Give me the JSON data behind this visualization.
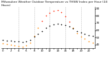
{
  "title": "Milwaukee Weather Outdoor Temperature vs THSW Index per Hour (24 Hours)",
  "title_fontsize": 3.2,
  "bg_color": "#ffffff",
  "plot_bg": "#ffffff",
  "hours": [
    0,
    1,
    2,
    3,
    4,
    5,
    6,
    7,
    8,
    9,
    10,
    11,
    12,
    13,
    14,
    15,
    16,
    17,
    18,
    19,
    20,
    21,
    22,
    23
  ],
  "temp": [
    47,
    46,
    46,
    45,
    45,
    44,
    45,
    47,
    51,
    55,
    59,
    63,
    66,
    68,
    69,
    68,
    67,
    65,
    62,
    59,
    57,
    55,
    53,
    52
  ],
  "thsw": [
    42,
    41,
    40,
    39,
    38,
    37,
    39,
    43,
    52,
    63,
    73,
    80,
    84,
    87,
    88,
    85,
    79,
    72,
    63,
    56,
    51,
    48,
    45,
    43
  ],
  "temp_color": "#000000",
  "thsw_color_low": "#ff8800",
  "thsw_color_high": "#ff2200",
  "ylim_min": 35,
  "ylim_max": 92,
  "ytick_vals": [
    40,
    50,
    60,
    70,
    80,
    90
  ],
  "ytick_labels": [
    "40",
    "50",
    "60",
    "70",
    "80",
    "90"
  ],
  "ylabel_fontsize": 3.0,
  "xlabel_fontsize": 2.8,
  "marker_size": 1.2,
  "grid_color": "#aaaaaa",
  "grid_alpha": 0.8,
  "grid_lw": 0.4,
  "vgrid_hours": [
    4,
    8,
    12,
    16,
    20
  ]
}
